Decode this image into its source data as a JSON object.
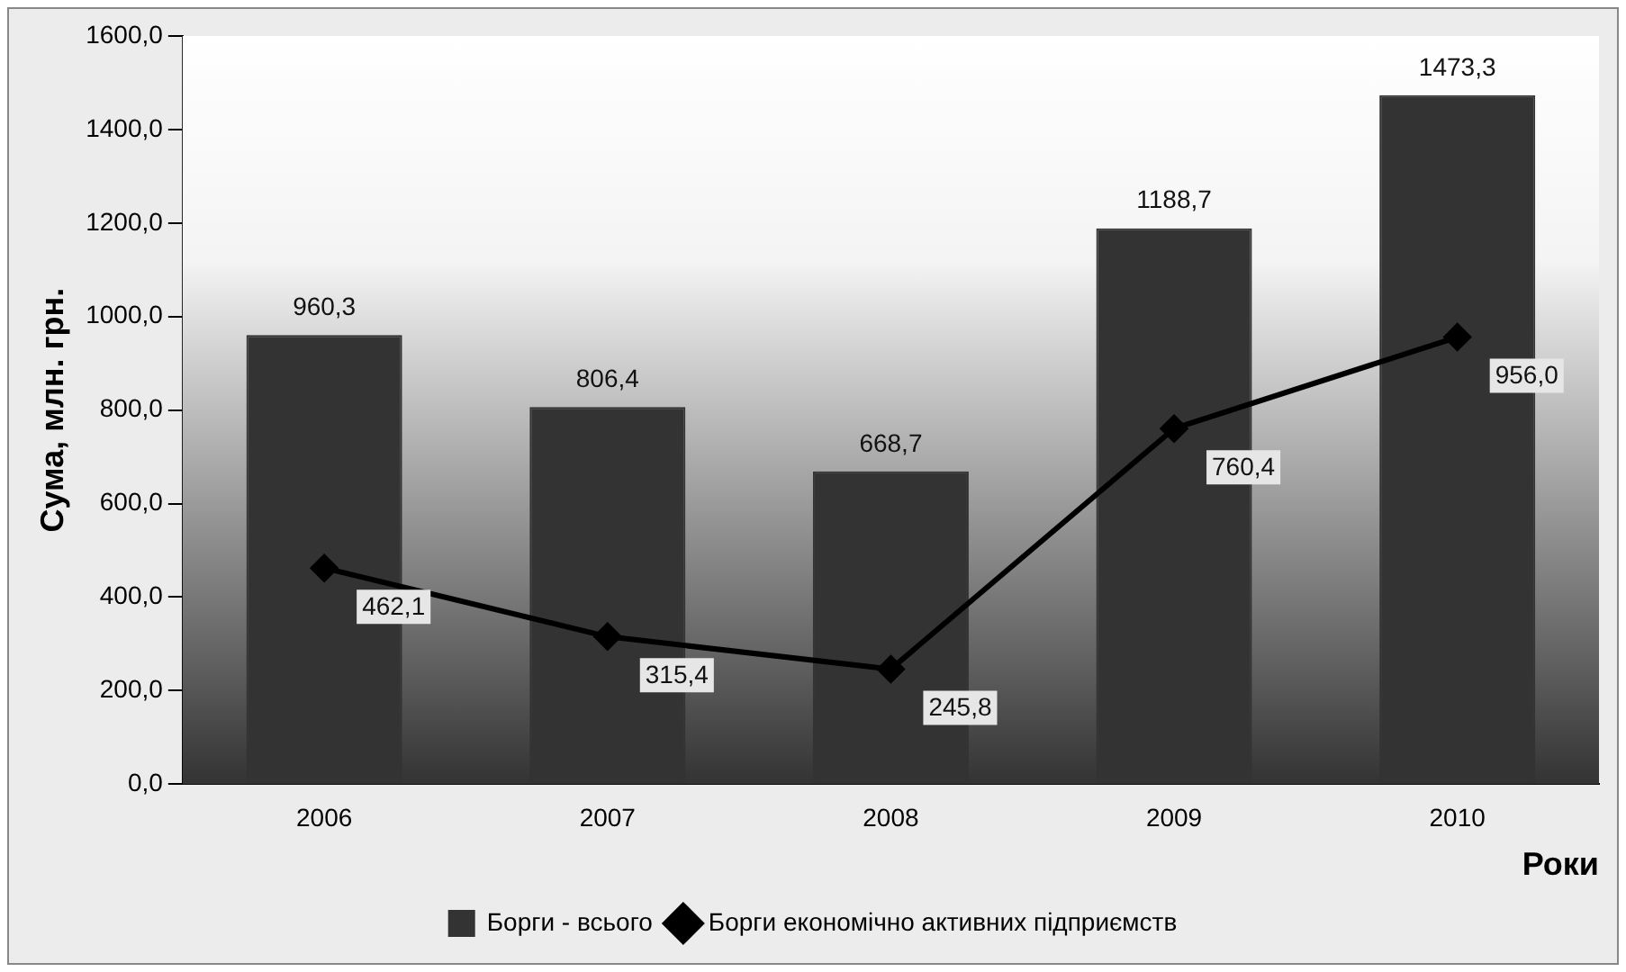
{
  "chart_data": {
    "type": "bar",
    "categories": [
      "2006",
      "2007",
      "2008",
      "2009",
      "2010"
    ],
    "ylabel": "Сума, млн. грн.",
    "xlabel": "Роки",
    "series": [
      {
        "name": "Борги - всього",
        "color": "#333333",
        "values": [
          960.3,
          806.4,
          668.7,
          1188.7,
          1473.3
        ],
        "value_labels": [
          "960,3",
          "806,4",
          "668,7",
          "1188,7",
          "1473,3"
        ]
      },
      {
        "name": "Борги економічно активних підприємств",
        "type": "line",
        "color": "#000000",
        "marker": "diamond",
        "values": [
          462.1,
          315.4,
          245.8,
          760.4,
          956.0
        ],
        "value_labels": [
          "462,1",
          "315,4",
          "245,8",
          "760,4",
          "956,0"
        ]
      }
    ],
    "ylim": [
      0,
      1600
    ],
    "yticks": [
      {
        "value": 0,
        "label": "0,0"
      },
      {
        "value": 200,
        "label": "200,0"
      },
      {
        "value": 400,
        "label": "400,0"
      },
      {
        "value": 600,
        "label": "600,0"
      },
      {
        "value": 800,
        "label": "800,0"
      },
      {
        "value": 1000,
        "label": "1000,0"
      },
      {
        "value": 1200,
        "label": "1200,0"
      },
      {
        "value": 1400,
        "label": "1400,0"
      },
      {
        "value": 1600,
        "label": "1600,0"
      }
    ],
    "grid": false,
    "legend": "bottom"
  }
}
